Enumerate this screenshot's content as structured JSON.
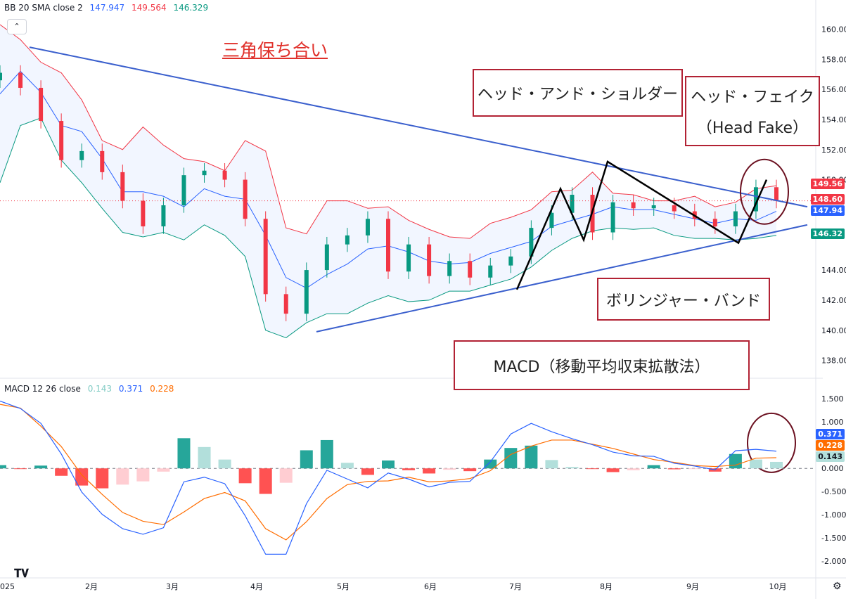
{
  "indicators": {
    "bb": {
      "label": "BB 20 SMA close 2",
      "basis": "147.947",
      "upper": "149.564",
      "lower": "146.329",
      "basis_color": "#2962ff",
      "upper_color": "#f23645",
      "lower_color": "#089981"
    },
    "macd": {
      "label": "MACD 12 26 close",
      "hist": "0.143",
      "macd": "0.371",
      "signal": "0.228",
      "hist_color": "#80cbc4",
      "macd_color": "#2962ff",
      "signal_color": "#ff6d00"
    }
  },
  "annotations": {
    "title": "三角保ち合い",
    "head_shoulders": "ヘッド・アンド・ショルダー",
    "head_fake_1": "ヘッド・フェイク",
    "head_fake_2": "（Head Fake）",
    "bollinger": "ボリンジャー・バンド",
    "macd_box": "MACD（移動平均収束拡散法）"
  },
  "price_tags": {
    "upper": "149.56",
    "last": "148.60",
    "basis": "147.94",
    "lower": "146.32",
    "macd": "0.371",
    "signal": "0.228",
    "hist": "0.143"
  },
  "chart_data": {
    "type": "candlestick",
    "x_ticks": [
      "025",
      "2月",
      "3月",
      "4月",
      "5月",
      "6月",
      "7月",
      "8月",
      "9月",
      "10月"
    ],
    "price_axis": {
      "ylim": [
        137,
        161
      ],
      "ticks": [
        "160.00",
        "158.00",
        "156.00",
        "154.00",
        "152.00",
        "150.00",
        "144.00",
        "142.00",
        "140.00",
        "138.00"
      ]
    },
    "macd_axis": {
      "ylim": [
        -2.3,
        1.7
      ],
      "ticks": [
        "1.500",
        "1.000",
        "0.500",
        "0.000",
        "-0.500",
        "-1.000",
        "-1.500",
        "-2.000"
      ]
    },
    "price_series": {
      "close": [
        157.1,
        156.1,
        153.9,
        151.3,
        151.9,
        150.5,
        148.6,
        146.9,
        148.3,
        150.3,
        150.6,
        150.0,
        147.4,
        142.4,
        141.1,
        144.0,
        145.7,
        146.3,
        147.4,
        143.9,
        145.7,
        143.6,
        144.6,
        143.5,
        144.3,
        144.9,
        146.8,
        147.8,
        149.0,
        146.5,
        148.5,
        148.1,
        148.3,
        147.9,
        147.4,
        146.9,
        147.9,
        149.5,
        148.6
      ],
      "upper": [
        160.3,
        159.3,
        157.8,
        157.1,
        155.3,
        152.6,
        152.0,
        153.5,
        152.3,
        151.4,
        151.2,
        150.6,
        152.6,
        151.9,
        146.8,
        146.4,
        148.6,
        148.6,
        148.1,
        148.2,
        147.3,
        146.7,
        146.2,
        146.1,
        147.1,
        147.5,
        148.0,
        149.2,
        149.3,
        150.5,
        149.1,
        149.0,
        148.6,
        148.6,
        148.9,
        148.2,
        148.5,
        149.4,
        149.6
      ],
      "basis": [
        155.7,
        157.2,
        155.8,
        153.6,
        153.2,
        151.4,
        149.2,
        149.2,
        148.9,
        148.2,
        149.4,
        148.9,
        148.7,
        146.3,
        143.5,
        142.8,
        143.7,
        144.4,
        145.4,
        145.6,
        145.2,
        144.6,
        144.4,
        144.5,
        145.1,
        145.5,
        145.9,
        146.9,
        147.3,
        147.7,
        148.2,
        148.0,
        148.0,
        147.7,
        147.4,
        147.1,
        147.4,
        147.3,
        147.9
      ],
      "lower": [
        149.8,
        153.6,
        154.1,
        151.3,
        149.8,
        148.1,
        146.5,
        146.2,
        146.5,
        146.0,
        147.0,
        146.3,
        144.9,
        140.0,
        139.5,
        140.5,
        141.1,
        141.1,
        141.8,
        142.3,
        141.9,
        142.0,
        142.6,
        142.6,
        143.0,
        143.4,
        144.2,
        145.3,
        146.1,
        146.6,
        146.8,
        146.7,
        146.8,
        146.3,
        146.1,
        146.1,
        146.0,
        146.1,
        146.3
      ]
    },
    "macd_series": {
      "macd": [
        1.45,
        1.29,
        0.97,
        0.31,
        -0.51,
        -0.99,
        -1.3,
        -1.42,
        -1.28,
        -0.29,
        -0.19,
        -0.33,
        -1.02,
        -1.85,
        -1.85,
        -0.76,
        -0.04,
        -0.23,
        -0.42,
        -0.1,
        -0.23,
        -0.4,
        -0.3,
        -0.28,
        0.14,
        0.74,
        0.97,
        0.79,
        0.64,
        0.51,
        0.35,
        0.27,
        0.26,
        0.11,
        0.05,
        -0.03,
        0.38,
        0.41,
        0.37
      ],
      "signal": [
        1.38,
        1.3,
        0.91,
        0.47,
        -0.14,
        -0.56,
        -0.95,
        -1.14,
        -1.21,
        -0.94,
        -0.65,
        -0.52,
        -0.7,
        -1.3,
        -1.54,
        -1.15,
        -0.65,
        -0.35,
        -0.28,
        -0.27,
        -0.19,
        -0.29,
        -0.27,
        -0.22,
        -0.05,
        0.3,
        0.48,
        0.61,
        0.61,
        0.52,
        0.43,
        0.31,
        0.19,
        0.13,
        0.06,
        0.04,
        0.07,
        0.22,
        0.23
      ]
    },
    "trendlines": "descending resistance and ascending support (triangle)"
  }
}
